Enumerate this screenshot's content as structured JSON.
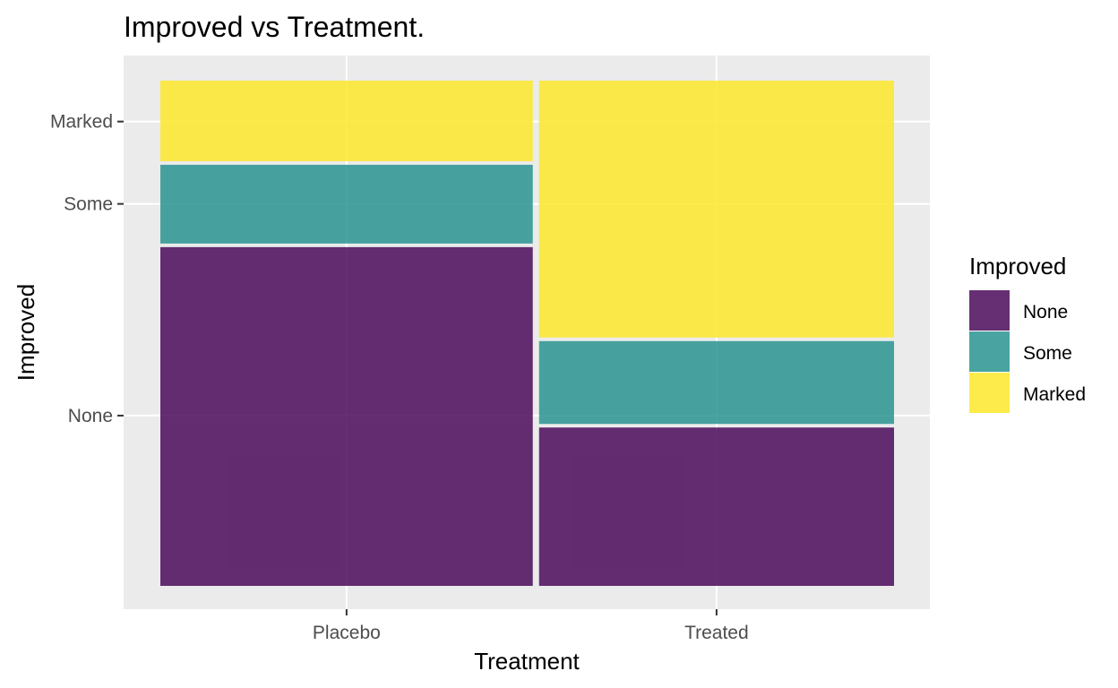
{
  "chart_data": {
    "type": "mosaic",
    "title": "Improved vs Treatment.",
    "xlabel": "Treatment",
    "ylabel": "Improved",
    "categories": [
      "Placebo",
      "Treated"
    ],
    "column_widths": [
      0.512,
      0.488
    ],
    "series": [
      {
        "name": "None",
        "color": "#440154",
        "values": [
          0.674,
          0.317
        ]
      },
      {
        "name": "Some",
        "color": "#21908C",
        "values": [
          0.163,
          0.171
        ]
      },
      {
        "name": "Marked",
        "color": "#FDE725",
        "values": [
          0.163,
          0.512
        ]
      }
    ],
    "y_ticks": [
      {
        "label": "None",
        "value": 0.337
      },
      {
        "label": "Some",
        "value": 0.756
      },
      {
        "label": "Marked",
        "value": 0.919
      }
    ],
    "legend": {
      "title": "Improved",
      "placement": "right"
    },
    "grid": true
  }
}
